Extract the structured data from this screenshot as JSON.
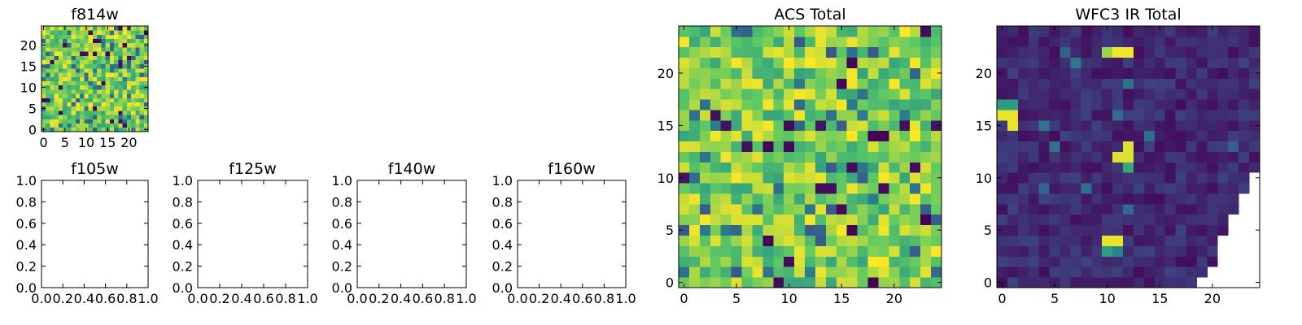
{
  "colormap": [
    "#440154",
    "#3b528b",
    "#21918c",
    "#5ec962",
    "#fde725"
  ],
  "chart_data": [
    {
      "name": "f814w",
      "type": "heatmap",
      "title": "f814w",
      "grid_size": [
        25,
        25
      ],
      "xticks": [
        "0",
        "5",
        "10",
        "15",
        "20"
      ],
      "yticks": [
        "0",
        "5",
        "10",
        "15",
        "20"
      ],
      "xlim": [
        -0.5,
        24.5
      ],
      "ylim": [
        -0.5,
        24.5
      ],
      "value_range": [
        0,
        1
      ],
      "pattern": "noise",
      "seed": 17
    },
    {
      "name": "f105w",
      "type": "empty",
      "title": "f105w",
      "xticks": [
        "0.0",
        "0.2",
        "0.4",
        "0.6",
        "0.8",
        "1.0"
      ],
      "yticks": [
        "0.0",
        "0.2",
        "0.4",
        "0.6",
        "0.8",
        "1.0"
      ],
      "xlim": [
        0,
        1
      ],
      "ylim": [
        0,
        1
      ]
    },
    {
      "name": "f125w",
      "type": "empty",
      "title": "f125w",
      "xticks": [
        "0.0",
        "0.2",
        "0.4",
        "0.6",
        "0.8",
        "1.0"
      ],
      "yticks": [
        "0.0",
        "0.2",
        "0.4",
        "0.6",
        "0.8",
        "1.0"
      ],
      "xlim": [
        0,
        1
      ],
      "ylim": [
        0,
        1
      ]
    },
    {
      "name": "f140w",
      "type": "empty",
      "title": "f140w",
      "xticks": [
        "0.0",
        "0.2",
        "0.4",
        "0.6",
        "0.8",
        "1.0"
      ],
      "yticks": [
        "0.0",
        "0.2",
        "0.4",
        "0.6",
        "0.8",
        "1.0"
      ],
      "xlim": [
        0,
        1
      ],
      "ylim": [
        0,
        1
      ]
    },
    {
      "name": "f160w",
      "type": "empty",
      "title": "f160w",
      "xticks": [
        "0.0",
        "0.2",
        "0.4",
        "0.6",
        "0.8",
        "1.0"
      ],
      "yticks": [
        "0.0",
        "0.2",
        "0.4",
        "0.6",
        "0.8",
        "1.0"
      ],
      "xlim": [
        0,
        1
      ],
      "ylim": [
        0,
        1
      ]
    },
    {
      "name": "acs-total",
      "type": "heatmap",
      "title": "ACS Total",
      "grid_size": [
        25,
        25
      ],
      "xticks": [
        "0",
        "5",
        "10",
        "15",
        "20"
      ],
      "yticks": [
        "0",
        "5",
        "10",
        "15",
        "20"
      ],
      "xlim": [
        -0.5,
        24.5
      ],
      "ylim": [
        -0.5,
        24.5
      ],
      "value_range": [
        0,
        1
      ],
      "pattern": "noise",
      "seed": 42
    },
    {
      "name": "wfc3-ir-total",
      "type": "heatmap",
      "title": "WFC3 IR Total",
      "grid_size": [
        25,
        25
      ],
      "xticks": [
        "0",
        "5",
        "10",
        "15",
        "20"
      ],
      "yticks": [
        "0",
        "5",
        "10",
        "15",
        "20"
      ],
      "xlim": [
        -0.5,
        24.5
      ],
      "ylim": [
        -0.5,
        24.5
      ],
      "value_range": [
        0,
        1
      ],
      "pattern": "low-background",
      "seed": 7,
      "hot_pixels": [
        {
          "x": 10,
          "y": 22,
          "v": 0.85
        },
        {
          "x": 11,
          "y": 22,
          "v": 0.98
        },
        {
          "x": 12,
          "y": 22,
          "v": 0.98
        },
        {
          "x": 0,
          "y": 17,
          "v": 0.55
        },
        {
          "x": 1,
          "y": 17,
          "v": 0.55
        },
        {
          "x": 0,
          "y": 16,
          "v": 0.97
        },
        {
          "x": 1,
          "y": 16,
          "v": 0.97
        },
        {
          "x": 1,
          "y": 15,
          "v": 0.97
        },
        {
          "x": 12,
          "y": 13,
          "v": 0.95
        },
        {
          "x": 11,
          "y": 12,
          "v": 0.95
        },
        {
          "x": 12,
          "y": 12,
          "v": 0.95
        },
        {
          "x": 12,
          "y": 11,
          "v": 0.6
        },
        {
          "x": 10,
          "y": 4,
          "v": 0.97
        },
        {
          "x": 11,
          "y": 4,
          "v": 0.97
        },
        {
          "x": 10,
          "y": 3,
          "v": 0.55
        },
        {
          "x": 11,
          "y": 3,
          "v": 0.45
        }
      ],
      "masked_lower_right": [
        {
          "y": 0,
          "from_x": 19
        },
        {
          "y": 1,
          "from_x": 20
        },
        {
          "y": 2,
          "from_x": 21
        },
        {
          "y": 3,
          "from_x": 21
        },
        {
          "y": 4,
          "from_x": 21
        },
        {
          "y": 5,
          "from_x": 22
        },
        {
          "y": 6,
          "from_x": 22
        },
        {
          "y": 7,
          "from_x": 23
        },
        {
          "y": 8,
          "from_x": 23
        },
        {
          "y": 9,
          "from_x": 24
        },
        {
          "y": 10,
          "from_x": 24
        }
      ]
    }
  ]
}
